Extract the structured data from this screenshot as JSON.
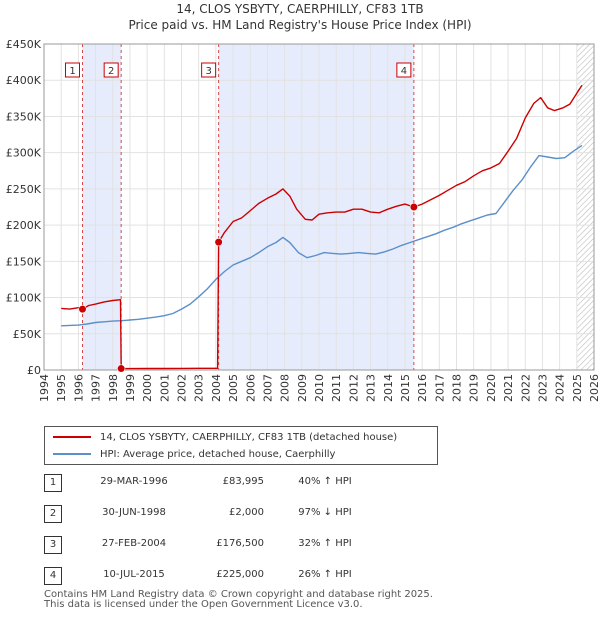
{
  "chart_data": {
    "type": "line",
    "title": "14, CLOS YSBYTY, CAERPHILLY, CF83 1TB",
    "subtitle": "Price paid vs. HM Land Registry's House Price Index (HPI)",
    "xlabel": "",
    "ylabel": "",
    "xlim": [
      1994,
      2026
    ],
    "ylim": [
      0,
      450000
    ],
    "x_ticks": [
      "1994",
      "1995",
      "1996",
      "1997",
      "1998",
      "1999",
      "2000",
      "2001",
      "2002",
      "2003",
      "2004",
      "2005",
      "2006",
      "2007",
      "2008",
      "2009",
      "2010",
      "2011",
      "2012",
      "2013",
      "2014",
      "2015",
      "2016",
      "2017",
      "2018",
      "2019",
      "2020",
      "2021",
      "2022",
      "2023",
      "2024",
      "2025",
      "2026"
    ],
    "y_ticks": [
      {
        "value": 0,
        "label": "£0"
      },
      {
        "value": 50000,
        "label": "£50K"
      },
      {
        "value": 100000,
        "label": "£100K"
      },
      {
        "value": 150000,
        "label": "£150K"
      },
      {
        "value": 200000,
        "label": "£200K"
      },
      {
        "value": 250000,
        "label": "£250K"
      },
      {
        "value": 300000,
        "label": "£300K"
      },
      {
        "value": 350000,
        "label": "£350K"
      },
      {
        "value": 400000,
        "label": "£400K"
      },
      {
        "value": 450000,
        "label": "£450K"
      }
    ],
    "grid": true,
    "series": [
      {
        "name": "14, CLOS YSBYTY, CAERPHILLY, CF83 1TB (detached house)",
        "color": "#cc0000",
        "points": [
          [
            1995.0,
            85000
          ],
          [
            1995.5,
            84000
          ],
          [
            1996.0,
            86000
          ],
          [
            1996.24,
            83995
          ],
          [
            1996.6,
            89000
          ],
          [
            1997.0,
            91000
          ],
          [
            1997.5,
            94000
          ],
          [
            1998.0,
            96000
          ],
          [
            1998.45,
            97000
          ],
          [
            1998.49,
            2000
          ],
          [
            1999.0,
            2000
          ],
          [
            2000.0,
            2050
          ],
          [
            2001.0,
            2100
          ],
          [
            2002.0,
            2200
          ],
          [
            2003.0,
            2300
          ],
          [
            2004.1,
            2400
          ],
          [
            2004.16,
            176500
          ],
          [
            2004.5,
            190000
          ],
          [
            2005.0,
            205000
          ],
          [
            2005.5,
            210000
          ],
          [
            2006.0,
            220000
          ],
          [
            2006.5,
            230000
          ],
          [
            2007.0,
            237000
          ],
          [
            2007.5,
            243000
          ],
          [
            2007.9,
            250000
          ],
          [
            2008.3,
            240000
          ],
          [
            2008.7,
            222000
          ],
          [
            2009.2,
            208000
          ],
          [
            2009.6,
            207000
          ],
          [
            2010.0,
            215000
          ],
          [
            2010.5,
            217000
          ],
          [
            2011.0,
            218000
          ],
          [
            2011.5,
            218000
          ],
          [
            2012.0,
            222000
          ],
          [
            2012.5,
            222000
          ],
          [
            2013.0,
            218000
          ],
          [
            2013.5,
            217000
          ],
          [
            2014.0,
            222000
          ],
          [
            2014.5,
            226000
          ],
          [
            2015.0,
            229000
          ],
          [
            2015.52,
            225000
          ],
          [
            2016.0,
            229000
          ],
          [
            2016.5,
            235000
          ],
          [
            2017.0,
            241000
          ],
          [
            2017.5,
            248000
          ],
          [
            2018.0,
            255000
          ],
          [
            2018.5,
            260000
          ],
          [
            2019.0,
            268000
          ],
          [
            2019.5,
            275000
          ],
          [
            2020.0,
            279000
          ],
          [
            2020.5,
            285000
          ],
          [
            2021.0,
            302000
          ],
          [
            2021.5,
            320000
          ],
          [
            2022.0,
            348000
          ],
          [
            2022.5,
            368000
          ],
          [
            2022.9,
            376000
          ],
          [
            2023.3,
            362000
          ],
          [
            2023.7,
            358000
          ],
          [
            2024.2,
            362000
          ],
          [
            2024.6,
            367000
          ],
          [
            2025.0,
            382000
          ],
          [
            2025.3,
            393000
          ]
        ]
      },
      {
        "name": "HPI: Average price, detached house, Caerphilly",
        "color": "#5b8fc9",
        "points": [
          [
            1995.0,
            61000
          ],
          [
            1995.5,
            61500
          ],
          [
            1996.0,
            62000
          ],
          [
            1996.5,
            63500
          ],
          [
            1997.0,
            65500
          ],
          [
            1997.5,
            66500
          ],
          [
            1998.0,
            67500
          ],
          [
            1998.5,
            68000
          ],
          [
            1999.0,
            69000
          ],
          [
            1999.5,
            70000
          ],
          [
            2000.0,
            71500
          ],
          [
            2000.5,
            73000
          ],
          [
            2001.0,
            75000
          ],
          [
            2001.5,
            78000
          ],
          [
            2002.0,
            84000
          ],
          [
            2002.5,
            91000
          ],
          [
            2003.0,
            101000
          ],
          [
            2003.5,
            112000
          ],
          [
            2004.0,
            125000
          ],
          [
            2004.5,
            136000
          ],
          [
            2005.0,
            145000
          ],
          [
            2005.5,
            150000
          ],
          [
            2006.0,
            155000
          ],
          [
            2006.5,
            162000
          ],
          [
            2007.0,
            170000
          ],
          [
            2007.5,
            176000
          ],
          [
            2007.9,
            183000
          ],
          [
            2008.3,
            176000
          ],
          [
            2008.8,
            162000
          ],
          [
            2009.3,
            155000
          ],
          [
            2009.8,
            158000
          ],
          [
            2010.3,
            162000
          ],
          [
            2010.8,
            161000
          ],
          [
            2011.3,
            160000
          ],
          [
            2011.8,
            161000
          ],
          [
            2012.3,
            162000
          ],
          [
            2012.8,
            161000
          ],
          [
            2013.3,
            160000
          ],
          [
            2013.8,
            163000
          ],
          [
            2014.3,
            167000
          ],
          [
            2014.8,
            172000
          ],
          [
            2015.3,
            176000
          ],
          [
            2015.8,
            180000
          ],
          [
            2016.3,
            184000
          ],
          [
            2016.8,
            188000
          ],
          [
            2017.3,
            193000
          ],
          [
            2017.8,
            197000
          ],
          [
            2018.3,
            202000
          ],
          [
            2018.8,
            206000
          ],
          [
            2019.3,
            210000
          ],
          [
            2019.8,
            214000
          ],
          [
            2020.3,
            216000
          ],
          [
            2020.8,
            232000
          ],
          [
            2021.3,
            248000
          ],
          [
            2021.8,
            262000
          ],
          [
            2022.3,
            280000
          ],
          [
            2022.8,
            296000
          ],
          [
            2023.3,
            294000
          ],
          [
            2023.8,
            292000
          ],
          [
            2024.3,
            293000
          ],
          [
            2024.8,
            302000
          ],
          [
            2025.3,
            310000
          ]
        ]
      }
    ],
    "sales": [
      {
        "label": "1",
        "x": 1996.24,
        "price": 83995
      },
      {
        "label": "2",
        "x": 1998.49,
        "price": 2000
      },
      {
        "label": "3",
        "x": 2004.16,
        "price": 176500
      },
      {
        "label": "4",
        "x": 2015.52,
        "price": 225000
      }
    ],
    "shaded_ranges": [
      [
        1996.24,
        1998.49
      ],
      [
        2004.16,
        2015.52
      ]
    ],
    "hatched_range": [
      2025.0,
      2026.0
    ],
    "marker_color": "#cc0000",
    "shade_color": "#e6ecfb",
    "line_colors": {
      "vertical_dash": "#cc0000"
    }
  },
  "legend": {
    "items": [
      {
        "label": "14, CLOS YSBYTY, CAERPHILLY, CF83 1TB (detached house)",
        "color": "#cc0000"
      },
      {
        "label": "HPI: Average price, detached house, Caerphilly",
        "color": "#5b8fc9"
      }
    ]
  },
  "table": {
    "rows": [
      {
        "num": "1",
        "date": "29-MAR-1996",
        "price": "£83,995",
        "hpi": "40% ↑ HPI"
      },
      {
        "num": "2",
        "date": "30-JUN-1998",
        "price": "£2,000",
        "hpi": "97% ↓ HPI"
      },
      {
        "num": "3",
        "date": "27-FEB-2004",
        "price": "£176,500",
        "hpi": "32% ↑ HPI"
      },
      {
        "num": "4",
        "date": "10-JUL-2015",
        "price": "£225,000",
        "hpi": "26% ↑ HPI"
      }
    ]
  },
  "footer": {
    "line1": "Contains HM Land Registry data © Crown copyright and database right 2025.",
    "line2": "This data is licensed under the Open Government Licence v3.0."
  }
}
